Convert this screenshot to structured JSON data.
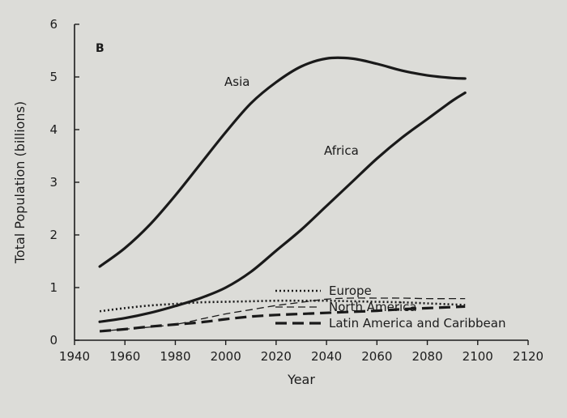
{
  "chart_data": {
    "type": "line",
    "panel_label": "B",
    "title": "",
    "xlabel": "Year",
    "ylabel": "Total Population (billions)",
    "xlim": [
      1940,
      2120
    ],
    "ylim": [
      0,
      6
    ],
    "x_ticks": [
      1940,
      1960,
      1980,
      2000,
      2020,
      2040,
      2060,
      2080,
      2100,
      2120
    ],
    "y_ticks": [
      0,
      1,
      2,
      3,
      4,
      5,
      6
    ],
    "grid": false,
    "legend_position": "bottom-right",
    "series": [
      {
        "name": "Asia",
        "style": "solid",
        "labeled_on_chart": true,
        "x": [
          1950,
          1960,
          1970,
          1980,
          1990,
          2000,
          2010,
          2020,
          2030,
          2040,
          2050,
          2060,
          2070,
          2080,
          2090,
          2095
        ],
        "values": [
          1.4,
          1.75,
          2.2,
          2.75,
          3.35,
          3.95,
          4.5,
          4.9,
          5.2,
          5.35,
          5.35,
          5.25,
          5.12,
          5.03,
          4.98,
          4.97
        ]
      },
      {
        "name": "Africa",
        "style": "solid",
        "labeled_on_chart": true,
        "x": [
          1950,
          1960,
          1970,
          1980,
          1990,
          2000,
          2010,
          2020,
          2030,
          2040,
          2050,
          2060,
          2070,
          2080,
          2090,
          2095
        ],
        "values": [
          0.35,
          0.42,
          0.52,
          0.65,
          0.8,
          1.0,
          1.3,
          1.7,
          2.1,
          2.55,
          3.0,
          3.45,
          3.85,
          4.2,
          4.55,
          4.7
        ]
      },
      {
        "name": "Europe",
        "style": "dotted",
        "labeled_on_chart": false,
        "x": [
          1950,
          1960,
          1970,
          1980,
          1990,
          2000,
          2010,
          2020,
          2030,
          2040,
          2050,
          2060,
          2070,
          2080,
          2090,
          2095
        ],
        "values": [
          0.55,
          0.61,
          0.66,
          0.69,
          0.72,
          0.73,
          0.74,
          0.75,
          0.75,
          0.75,
          0.74,
          0.73,
          0.72,
          0.7,
          0.68,
          0.67
        ]
      },
      {
        "name": "North America",
        "style": "dashed-thin",
        "labeled_on_chart": false,
        "x": [
          1950,
          1960,
          1970,
          1980,
          1990,
          2000,
          2010,
          2020,
          2030,
          2040,
          2050,
          2060,
          2070,
          2080,
          2090,
          2095
        ],
        "values": [
          0.17,
          0.21,
          0.25,
          0.3,
          0.4,
          0.5,
          0.58,
          0.66,
          0.72,
          0.78,
          0.8,
          0.8,
          0.8,
          0.79,
          0.79,
          0.79
        ]
      },
      {
        "name": "Latin America and Caribbean",
        "style": "dashed-thick",
        "labeled_on_chart": false,
        "x": [
          1950,
          1960,
          1970,
          1980,
          1990,
          2000,
          2010,
          2020,
          2030,
          2040,
          2050,
          2060,
          2070,
          2080,
          2090,
          2095
        ],
        "values": [
          0.17,
          0.21,
          0.26,
          0.3,
          0.34,
          0.4,
          0.45,
          0.48,
          0.5,
          0.52,
          0.54,
          0.56,
          0.59,
          0.61,
          0.63,
          0.64
        ]
      }
    ]
  }
}
